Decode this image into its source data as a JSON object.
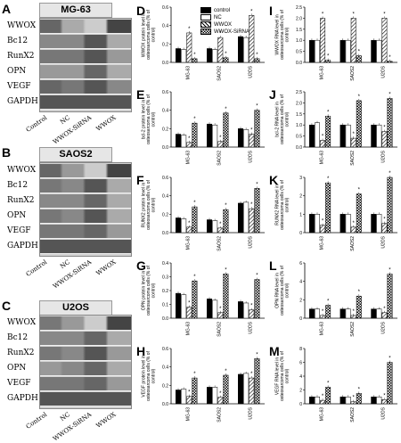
{
  "panels": {
    "A": "A",
    "B": "B",
    "C": "C",
    "D": "D",
    "E": "E",
    "F": "F",
    "G": "G",
    "H": "H",
    "I": "I",
    "J": "J",
    "K": "K",
    "L": "L",
    "M": "M"
  },
  "blots": [
    {
      "title": "MG-63",
      "bands": [
        "WWOX",
        "Bc12",
        "RunX2",
        "OPN",
        "VEGF",
        "GAPDH"
      ]
    },
    {
      "title": "SAOS2",
      "bands": [
        "WWOX",
        "Bc12",
        "RunX2",
        "OPN",
        "VEGF",
        "GAPDH"
      ]
    },
    {
      "title": "U2OS",
      "bands": [
        "WWOX",
        "Bc12",
        "RunX2",
        "OPN",
        "VEGF",
        "GAPDH"
      ]
    }
  ],
  "lanes": [
    "Control",
    "NC",
    "WWOX-SiRNA",
    "WWOX"
  ],
  "legend": [
    "control",
    "NC",
    "WWOX",
    "WWOX-SiRNA"
  ],
  "colors": {
    "control": "#000000",
    "NC": "#ffffff",
    "WWOX": "#444444",
    "WWOX-SiRNA": "#cccccc"
  },
  "chart_data": [
    {
      "panel": "D",
      "type": "bar",
      "categories": [
        "MG-63",
        "SAOS2",
        "U2OS"
      ],
      "ylabel": "WWOX protein level in osteosarcoma cells (% of control)",
      "ylim": [
        0,
        0.6
      ],
      "yticks": [
        "0.0",
        "0.2",
        "0.4",
        "0.6"
      ],
      "series": [
        {
          "name": "control",
          "values": [
            0.15,
            0.15,
            0.28
          ]
        },
        {
          "name": "NC",
          "values": [
            0.14,
            0.14,
            0.27
          ]
        },
        {
          "name": "WWOX",
          "values": [
            0.32,
            0.27,
            0.51
          ]
        },
        {
          "name": "WWOX-SiRNA",
          "values": [
            0.04,
            0.05,
            0.04
          ]
        }
      ],
      "annotations": [
        "*",
        "*",
        "*",
        "*",
        "*",
        "*"
      ]
    },
    {
      "panel": "E",
      "type": "bar",
      "categories": [
        "MG-63",
        "SAOS2",
        "U2OS"
      ],
      "ylabel": "bcl-2 protein level in osteosarcoma cells (% of control)",
      "ylim": [
        0,
        0.6
      ],
      "yticks": [
        "0.0",
        "0.2",
        "0.4",
        "0.6"
      ],
      "series": [
        {
          "name": "control",
          "values": [
            0.14,
            0.25,
            0.2
          ]
        },
        {
          "name": "NC",
          "values": [
            0.13,
            0.24,
            0.19
          ]
        },
        {
          "name": "WWOX",
          "values": [
            0.05,
            0.06,
            0.14
          ]
        },
        {
          "name": "WWOX-SiRNA",
          "values": [
            0.26,
            0.37,
            0.4
          ]
        }
      ],
      "annotations": [
        "*",
        "*",
        "*",
        "*",
        "*",
        "*"
      ]
    },
    {
      "panel": "F",
      "type": "bar",
      "categories": [
        "MG-63",
        "SAOS2",
        "U2OS"
      ],
      "ylabel": "RUNX2 protein level in osteosarcoma cells (% of control)",
      "ylim": [
        0,
        0.6
      ],
      "yticks": [
        "0.0",
        "0.2",
        "0.4",
        "0.6"
      ],
      "series": [
        {
          "name": "control",
          "values": [
            0.16,
            0.14,
            0.32
          ]
        },
        {
          "name": "NC",
          "values": [
            0.15,
            0.13,
            0.33
          ]
        },
        {
          "name": "WWOX",
          "values": [
            0.06,
            0.05,
            0.26
          ]
        },
        {
          "name": "WWOX-SiRNA",
          "values": [
            0.28,
            0.25,
            0.48
          ]
        }
      ],
      "annotations": [
        "*",
        "*",
        "*",
        "*",
        "*",
        "*"
      ]
    },
    {
      "panel": "G",
      "type": "bar",
      "categories": [
        "MG-63",
        "SAOS2",
        "U2OS"
      ],
      "ylabel": "OPN protein level in osteosarcoma cells (% of control)",
      "ylim": [
        0,
        0.4
      ],
      "yticks": [
        "0.0",
        "0.1",
        "0.2",
        "0.3",
        "0.4"
      ],
      "series": [
        {
          "name": "control",
          "values": [
            0.18,
            0.14,
            0.12
          ]
        },
        {
          "name": "NC",
          "values": [
            0.17,
            0.13,
            0.11
          ]
        },
        {
          "name": "WWOX",
          "values": [
            0.08,
            0.04,
            0.06
          ]
        },
        {
          "name": "WWOX-SiRNA",
          "values": [
            0.27,
            0.32,
            0.28
          ]
        }
      ],
      "annotations": [
        "*",
        "*",
        "*",
        "*",
        "*",
        "*"
      ]
    },
    {
      "panel": "H",
      "type": "bar",
      "categories": [
        "MG-63",
        "SAOS2",
        "U2OS"
      ],
      "ylabel": "VEGF protein level in osteosarcoma cells (% of control)",
      "ylim": [
        0,
        0.6
      ],
      "yticks": [
        "0.0",
        "0.2",
        "0.4",
        "0.6"
      ],
      "series": [
        {
          "name": "control",
          "values": [
            0.15,
            0.18,
            0.32
          ]
        },
        {
          "name": "NC",
          "values": [
            0.16,
            0.18,
            0.33
          ]
        },
        {
          "name": "WWOX",
          "values": [
            0.08,
            0.07,
            0.28
          ]
        },
        {
          "name": "WWOX-SiRNA",
          "values": [
            0.28,
            0.31,
            0.49
          ]
        }
      ],
      "annotations": [
        "*",
        "*",
        "*",
        "*",
        "*",
        "*"
      ]
    },
    {
      "panel": "I",
      "type": "bar",
      "categories": [
        "MG-63",
        "SAOS2",
        "U2OS"
      ],
      "ylabel": "WWOX RNA level in osteosarcoma cells (% of control)",
      "ylim": [
        0,
        2.5
      ],
      "yticks": [
        "0.0",
        "0.5",
        "1.0",
        "1.5",
        "2.0",
        "2.5"
      ],
      "series": [
        {
          "name": "control",
          "values": [
            1.0,
            1.0,
            1.0
          ]
        },
        {
          "name": "NC",
          "values": [
            1.0,
            1.0,
            1.0
          ]
        },
        {
          "name": "WWOX",
          "values": [
            2.0,
            2.0,
            2.0
          ]
        },
        {
          "name": "WWOX-SiRNA",
          "values": [
            0.1,
            0.3,
            0.05
          ]
        }
      ],
      "annotations": [
        "*",
        "*",
        "*",
        "*",
        "*",
        "*"
      ]
    },
    {
      "panel": "J",
      "type": "bar",
      "categories": [
        "MG-63",
        "SAOS2",
        "U2OS"
      ],
      "ylabel": "bcl-2 RNA level in osteosarcoma cells (% of control)",
      "ylim": [
        0,
        2.5
      ],
      "yticks": [
        "0.0",
        "0.5",
        "1.0",
        "1.5",
        "2.0",
        "2.5"
      ],
      "series": [
        {
          "name": "control",
          "values": [
            1.0,
            1.0,
            1.0
          ]
        },
        {
          "name": "NC",
          "values": [
            1.1,
            1.0,
            1.0
          ]
        },
        {
          "name": "WWOX",
          "values": [
            0.3,
            0.4,
            0.7
          ]
        },
        {
          "name": "WWOX-SiRNA",
          "values": [
            1.4,
            2.1,
            2.2
          ]
        }
      ],
      "annotations": [
        "*",
        "*",
        "*",
        "*",
        "*",
        "*"
      ]
    },
    {
      "panel": "K",
      "type": "bar",
      "categories": [
        "MG-63",
        "SAOS2",
        "U2OS"
      ],
      "ylabel": "RUNX2 RNA level in osteosarcoma cells (% of control)",
      "ylim": [
        0,
        3
      ],
      "yticks": [
        "0",
        "1",
        "2",
        "3"
      ],
      "series": [
        {
          "name": "control",
          "values": [
            1.0,
            1.0,
            1.0
          ]
        },
        {
          "name": "NC",
          "values": [
            1.0,
            1.0,
            1.0
          ]
        },
        {
          "name": "WWOX",
          "values": [
            0.4,
            0.3,
            0.5
          ]
        },
        {
          "name": "WWOX-SiRNA",
          "values": [
            2.7,
            2.1,
            3.0
          ]
        }
      ],
      "annotations": [
        "*",
        "*",
        "*",
        "*",
        "*",
        "*"
      ]
    },
    {
      "panel": "L",
      "type": "bar",
      "categories": [
        "MG-63",
        "SAOS2",
        "U2OS"
      ],
      "ylabel": "OPN RNA level in osteosarcoma cells (% of control)",
      "ylim": [
        0,
        6
      ],
      "yticks": [
        "0",
        "2",
        "4",
        "6"
      ],
      "series": [
        {
          "name": "control",
          "values": [
            1.0,
            1.0,
            1.0
          ]
        },
        {
          "name": "NC",
          "values": [
            1.0,
            1.0,
            1.0
          ]
        },
        {
          "name": "WWOX",
          "values": [
            0.3,
            0.3,
            0.6
          ]
        },
        {
          "name": "WWOX-SiRNA",
          "values": [
            1.4,
            2.4,
            4.8
          ]
        }
      ],
      "annotations": [
        "*",
        "*",
        "*",
        "*",
        "*",
        "*"
      ]
    },
    {
      "panel": "M",
      "type": "bar",
      "categories": [
        "MG-63",
        "SAOS2",
        "U2OS"
      ],
      "ylabel": "VEGF RNA level in osteosarcoma cells (% of control)",
      "ylim": [
        0,
        8
      ],
      "yticks": [
        "0",
        "2",
        "4",
        "6",
        "8"
      ],
      "series": [
        {
          "name": "control",
          "values": [
            1.0,
            1.0,
            1.0
          ]
        },
        {
          "name": "NC",
          "values": [
            1.0,
            1.0,
            1.0
          ]
        },
        {
          "name": "WWOX",
          "values": [
            0.5,
            0.3,
            0.6
          ]
        },
        {
          "name": "WWOX-SiRNA",
          "values": [
            2.4,
            1.5,
            6.0
          ]
        }
      ],
      "annotations": [
        "*",
        "*",
        "*",
        "*",
        "*",
        "*"
      ]
    }
  ]
}
